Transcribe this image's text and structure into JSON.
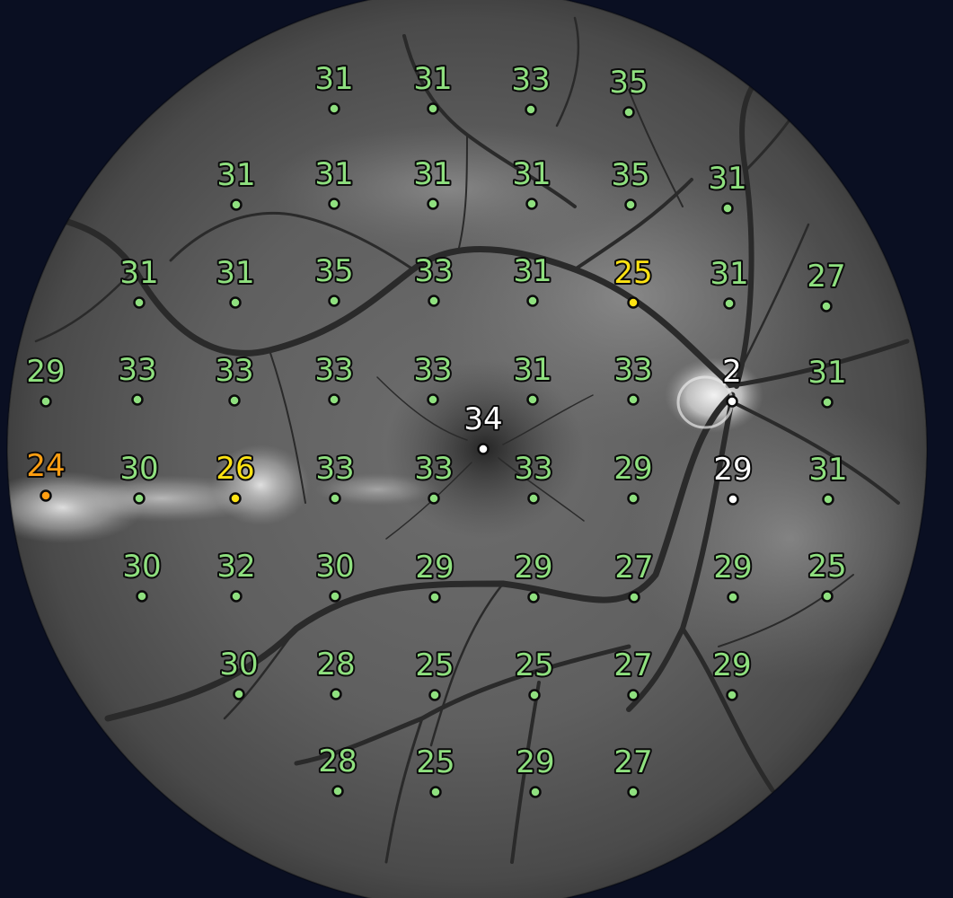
{
  "colors": {
    "background": "#0a0f22",
    "normal": "#8fe07f",
    "mild": "#ffe313",
    "moderate": "#ff9e12",
    "reference": "#ffffff"
  },
  "points": [
    {
      "value": "31",
      "status": "normal"
    },
    {
      "value": "31",
      "status": "normal"
    },
    {
      "value": "33",
      "status": "normal"
    },
    {
      "value": "35",
      "status": "normal"
    },
    {
      "value": "31",
      "status": "normal"
    },
    {
      "value": "31",
      "status": "normal"
    },
    {
      "value": "31",
      "status": "normal"
    },
    {
      "value": "31",
      "status": "normal"
    },
    {
      "value": "35",
      "status": "normal"
    },
    {
      "value": "31",
      "status": "normal"
    },
    {
      "value": "31",
      "status": "normal"
    },
    {
      "value": "31",
      "status": "normal"
    },
    {
      "value": "35",
      "status": "normal"
    },
    {
      "value": "33",
      "status": "normal"
    },
    {
      "value": "31",
      "status": "normal"
    },
    {
      "value": "25",
      "status": "mild"
    },
    {
      "value": "31",
      "status": "normal"
    },
    {
      "value": "27",
      "status": "normal"
    },
    {
      "value": "29",
      "status": "normal"
    },
    {
      "value": "33",
      "status": "normal"
    },
    {
      "value": "33",
      "status": "normal"
    },
    {
      "value": "33",
      "status": "normal"
    },
    {
      "value": "33",
      "status": "normal"
    },
    {
      "value": "31",
      "status": "normal"
    },
    {
      "value": "33",
      "status": "normal"
    },
    {
      "value": "2",
      "status": "reference"
    },
    {
      "value": "31",
      "status": "normal"
    },
    {
      "value": "34",
      "status": "reference"
    },
    {
      "value": "24",
      "status": "moderate"
    },
    {
      "value": "30",
      "status": "normal"
    },
    {
      "value": "26",
      "status": "mild"
    },
    {
      "value": "33",
      "status": "normal"
    },
    {
      "value": "33",
      "status": "normal"
    },
    {
      "value": "33",
      "status": "normal"
    },
    {
      "value": "29",
      "status": "normal"
    },
    {
      "value": "29",
      "status": "reference"
    },
    {
      "value": "31",
      "status": "normal"
    },
    {
      "value": "30",
      "status": "normal"
    },
    {
      "value": "32",
      "status": "normal"
    },
    {
      "value": "30",
      "status": "normal"
    },
    {
      "value": "29",
      "status": "normal"
    },
    {
      "value": "29",
      "status": "normal"
    },
    {
      "value": "27",
      "status": "normal"
    },
    {
      "value": "29",
      "status": "normal"
    },
    {
      "value": "25",
      "status": "normal"
    },
    {
      "value": "30",
      "status": "normal"
    },
    {
      "value": "28",
      "status": "normal"
    },
    {
      "value": "25",
      "status": "normal"
    },
    {
      "value": "25",
      "status": "normal"
    },
    {
      "value": "27",
      "status": "normal"
    },
    {
      "value": "29",
      "status": "normal"
    },
    {
      "value": "28",
      "status": "normal"
    },
    {
      "value": "25",
      "status": "normal"
    },
    {
      "value": "29",
      "status": "normal"
    },
    {
      "value": "27",
      "status": "normal"
    }
  ]
}
